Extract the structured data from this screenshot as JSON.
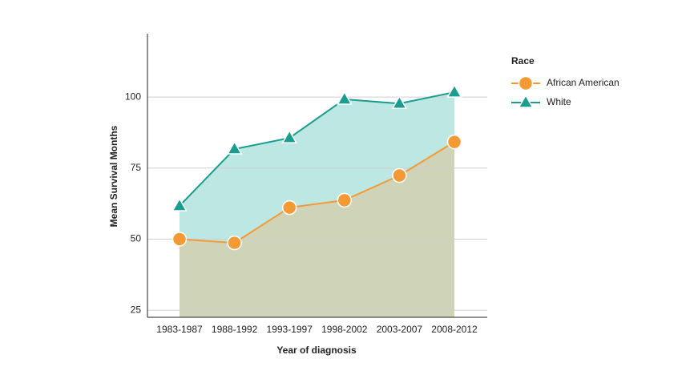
{
  "chart_data": {
    "type": "area",
    "x_label": "Year of diagnosis",
    "y_label": "Mean Survival Months",
    "categories": [
      "1983-1987",
      "1988-1992",
      "1993-1997",
      "1998-2002",
      "2003-2007",
      "2008-2012"
    ],
    "series": [
      {
        "name": "African American",
        "color": "#f39a35",
        "fill": "#cfd4b8",
        "marker": "circle",
        "values": [
          50,
          48.7,
          61.1,
          63.7,
          72.4,
          84.2
        ]
      },
      {
        "name": "White",
        "color": "#1a9c8e",
        "fill": "#bde7e3",
        "marker": "triangle",
        "values": [
          61.7,
          81.7,
          85.6,
          99.2,
          97.7,
          101.7
        ]
      }
    ],
    "legend_title": "Race",
    "ylim": [
      22.5,
      122.3
    ],
    "yticks": [
      25,
      50,
      75,
      100
    ],
    "grid": true
  }
}
